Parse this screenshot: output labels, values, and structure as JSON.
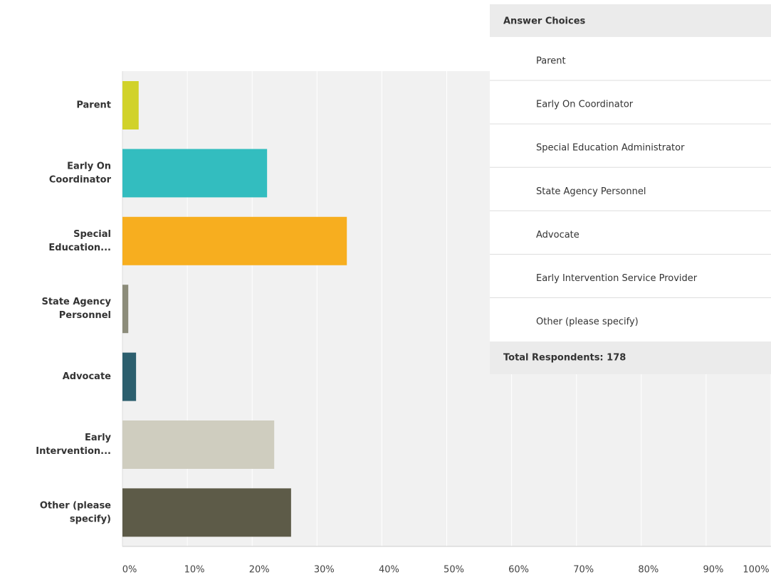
{
  "chart_data": {
    "type": "bar",
    "orientation": "horizontal",
    "categories": [
      [
        "Parent"
      ],
      [
        "Early On",
        "Coordinator"
      ],
      [
        "Special",
        "Education..."
      ],
      [
        "State Agency",
        "Personnel"
      ],
      [
        "Advocate"
      ],
      [
        "Early",
        "Intervention..."
      ],
      [
        "Other (please",
        "specify)"
      ]
    ],
    "values": [
      2.5,
      22.3,
      34.6,
      0.9,
      2.1,
      23.4,
      26.0
    ],
    "colors": [
      "#d1d22a",
      "#33bdbf",
      "#f7ae1f",
      "#8c8c7a",
      "#2c5f6e",
      "#cfcdbf",
      "#5d5b48"
    ],
    "xlim": [
      0,
      100
    ],
    "xticks": [
      {
        "value": 0,
        "label": "0%"
      },
      {
        "value": 10,
        "label": "10%"
      },
      {
        "value": 20,
        "label": "20%"
      },
      {
        "value": 30,
        "label": "30%"
      },
      {
        "value": 40,
        "label": "40%"
      },
      {
        "value": 50,
        "label": "50%"
      },
      {
        "value": 60,
        "label": "60%"
      },
      {
        "value": 70,
        "label": "70%"
      },
      {
        "value": 80,
        "label": "80%"
      },
      {
        "value": 90,
        "label": "90%"
      },
      {
        "value": 100,
        "label": "100%"
      }
    ],
    "grid": true
  },
  "table": {
    "header": "Answer Choices",
    "rows": [
      "Parent",
      "Early On Coordinator",
      "Special Education Administrator",
      "State Agency Personnel",
      "Advocate",
      "Early Intervention Service Provider",
      "Other (please specify)"
    ],
    "footer": "Total Respondents: 178"
  }
}
